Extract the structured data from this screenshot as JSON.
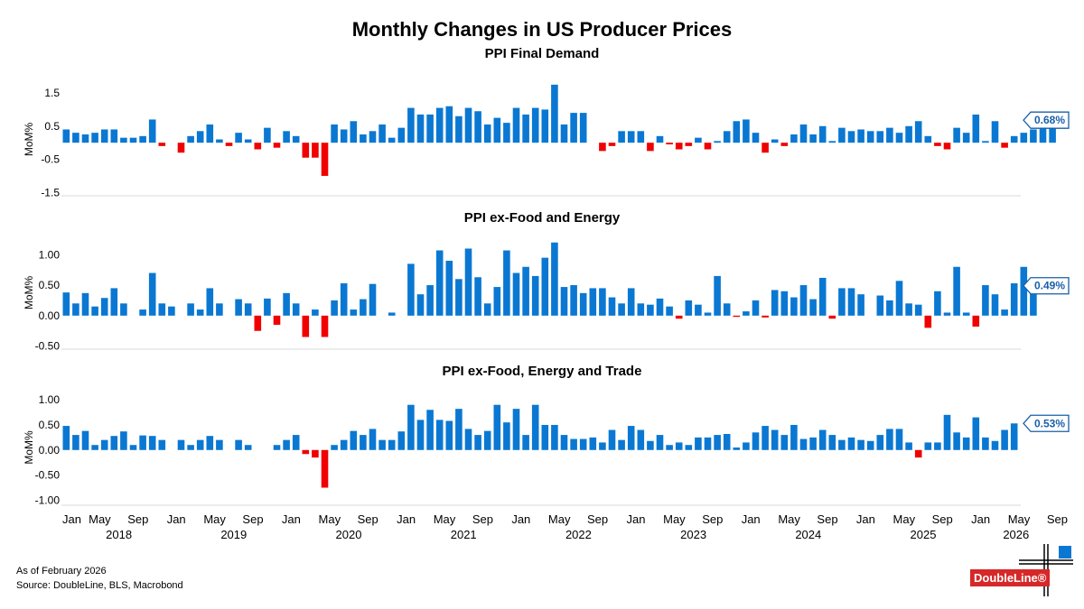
{
  "chart_data": {
    "type": "bar",
    "title": "Monthly Changes in US Producer Prices",
    "start": "2018-01",
    "colors": {
      "positive": "#0a78d2",
      "negative": "#f00000",
      "badge": "#1a5fa8"
    },
    "x_axis": {
      "month_labels": [
        "Jan",
        "May",
        "Sep",
        "Jan",
        "May",
        "Sep",
        "Jan",
        "May",
        "Sep",
        "Jan",
        "May",
        "Sep",
        "Jan",
        "May",
        "Sep",
        "Jan",
        "May",
        "Sep",
        "Jan",
        "May",
        "Sep",
        "Jan",
        "May",
        "Sep",
        "Jan",
        "May",
        "Sep",
        "Jan",
        "May"
      ],
      "year_labels": [
        "2018",
        "2019",
        "2020",
        "2021",
        "2022",
        "2023",
        "2024",
        "2025",
        "2026"
      ]
    },
    "panels": [
      {
        "subtitle": "PPI Final Demand",
        "ylabel": "MoM%",
        "ylim": [
          -1.6,
          1.8
        ],
        "yticks": [
          1.5,
          0.5,
          -0.5,
          -1.5
        ],
        "ytick_labels": [
          "1.5",
          "0.5",
          "-0.5",
          "-1.5"
        ],
        "latest_label": "0.68%",
        "values": [
          0.4,
          0.3,
          0.25,
          0.3,
          0.4,
          0.4,
          0.15,
          0.15,
          0.2,
          0.7,
          -0.1,
          0.0,
          -0.3,
          0.2,
          0.35,
          0.55,
          0.1,
          -0.1,
          0.3,
          0.1,
          -0.2,
          0.45,
          -0.15,
          0.35,
          0.2,
          -0.45,
          -0.45,
          -1.0,
          0.55,
          0.4,
          0.65,
          0.25,
          0.35,
          0.55,
          0.15,
          0.45,
          1.05,
          0.85,
          0.85,
          1.05,
          1.1,
          0.8,
          1.05,
          0.95,
          0.55,
          0.75,
          0.6,
          1.05,
          0.85,
          1.05,
          1.0,
          1.75,
          0.55,
          0.9,
          0.9,
          0.0,
          -0.25,
          -0.1,
          0.35,
          0.35,
          0.35,
          -0.25,
          0.2,
          -0.05,
          -0.2,
          -0.1,
          0.15,
          -0.2,
          0.05,
          0.35,
          0.65,
          0.7,
          0.3,
          -0.3,
          0.1,
          -0.1,
          0.25,
          0.55,
          0.25,
          0.5,
          0.05,
          0.45,
          0.35,
          0.4,
          0.35,
          0.35,
          0.45,
          0.3,
          0.5,
          0.65,
          0.2,
          -0.1,
          -0.2,
          0.45,
          0.3,
          0.85,
          0.05,
          0.65,
          -0.15,
          0.2,
          0.3,
          0.4,
          0.55,
          0.68
        ]
      },
      {
        "subtitle": "PPI ex-Food and Energy",
        "ylabel": "MoM%",
        "ylim": [
          -0.55,
          1.3
        ],
        "yticks": [
          1.0,
          0.5,
          0.0,
          -0.5
        ],
        "ytick_labels": [
          "1.00",
          "0.50",
          "0.00",
          "-0.50"
        ],
        "latest_label": "0.49%",
        "values": [
          0.38,
          0.2,
          0.37,
          0.15,
          0.29,
          0.45,
          0.2,
          0.0,
          0.1,
          0.7,
          0.2,
          0.15,
          0.0,
          0.2,
          0.1,
          0.45,
          0.2,
          0.0,
          0.27,
          0.2,
          -0.25,
          0.28,
          -0.15,
          0.37,
          0.2,
          -0.35,
          0.1,
          -0.35,
          0.25,
          0.53,
          0.1,
          0.27,
          0.52,
          0.0,
          0.05,
          0.0,
          0.85,
          0.35,
          0.5,
          1.07,
          0.9,
          0.6,
          1.1,
          0.63,
          0.2,
          0.47,
          1.07,
          0.7,
          0.8,
          0.65,
          0.95,
          1.2,
          0.47,
          0.5,
          0.37,
          0.45,
          0.45,
          0.3,
          0.2,
          0.45,
          0.2,
          0.18,
          0.28,
          0.15,
          -0.05,
          0.25,
          0.18,
          0.05,
          0.65,
          0.2,
          -0.02,
          0.07,
          0.25,
          -0.03,
          0.42,
          0.4,
          0.3,
          0.5,
          0.27,
          0.62,
          -0.05,
          0.45,
          0.45,
          0.35,
          0.0,
          0.33,
          0.25,
          0.57,
          0.2,
          0.18,
          -0.2,
          0.4,
          0.05,
          0.8,
          0.05,
          -0.18,
          0.5,
          0.35,
          0.1,
          0.53,
          0.8,
          0.49
        ]
      },
      {
        "subtitle": "PPI ex-Food, Energy and Trade",
        "ylabel": "MoM%",
        "ylim": [
          -1.1,
          1.2
        ],
        "yticks": [
          1.0,
          0.5,
          0.0,
          -0.5,
          -1.0
        ],
        "ytick_labels": [
          "1.00",
          "0.50",
          "0.00",
          "-0.50",
          "-1.00"
        ],
        "latest_label": "0.53%",
        "values": [
          0.48,
          0.3,
          0.38,
          0.1,
          0.2,
          0.28,
          0.37,
          0.1,
          0.29,
          0.28,
          0.2,
          0.0,
          0.2,
          0.1,
          0.2,
          0.28,
          0.2,
          0.0,
          0.2,
          0.1,
          0.0,
          0.0,
          0.1,
          0.2,
          0.3,
          -0.08,
          -0.15,
          -0.75,
          0.1,
          0.2,
          0.38,
          0.3,
          0.42,
          0.2,
          0.2,
          0.37,
          0.9,
          0.6,
          0.8,
          0.6,
          0.58,
          0.82,
          0.42,
          0.3,
          0.38,
          0.9,
          0.55,
          0.82,
          0.3,
          0.9,
          0.5,
          0.5,
          0.3,
          0.22,
          0.22,
          0.25,
          0.15,
          0.4,
          0.2,
          0.48,
          0.4,
          0.18,
          0.3,
          0.1,
          0.15,
          0.1,
          0.25,
          0.25,
          0.3,
          0.32,
          0.05,
          0.15,
          0.35,
          0.48,
          0.4,
          0.3,
          0.5,
          0.22,
          0.25,
          0.4,
          0.3,
          0.2,
          0.25,
          0.2,
          0.18,
          0.3,
          0.42,
          0.42,
          0.15,
          -0.15,
          0.15,
          0.15,
          0.7,
          0.35,
          0.25,
          0.65,
          0.25,
          0.18,
          0.4,
          0.53
        ]
      }
    ]
  },
  "footer": {
    "as_of": "As of February 2026",
    "source": "Source: DoubleLine, BLS, Macrobond"
  },
  "logo": {
    "text": "DoubleLine®"
  }
}
